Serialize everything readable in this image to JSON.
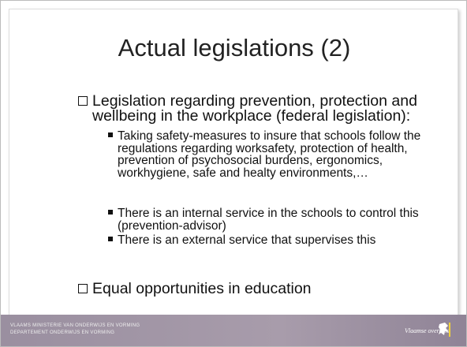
{
  "title": "Actual legislations (2)",
  "bullets": [
    {
      "text": "Legislation regarding prevention, protection and wellbeing in the workplace (federal legislation):",
      "sub": [
        "Taking safety-measures to insure that schools follow the regulations regarding worksafety, protection of health, prevention of psychosocial burdens, ergonomics, workhygiene, safe and healty environments,…",
        "There is an internal service in the schools to control this (prevention-advisor)",
        "There is an external service that supervises this"
      ]
    },
    {
      "text": "Equal opportunities in education"
    }
  ],
  "footer": {
    "line1": "VLAAMS MINISTERIE VAN ONDERWIJS EN VORMING",
    "line2": "DEPARTEMENT ONDERWIJS EN VORMING",
    "logo": "Vlaamse overheid"
  }
}
